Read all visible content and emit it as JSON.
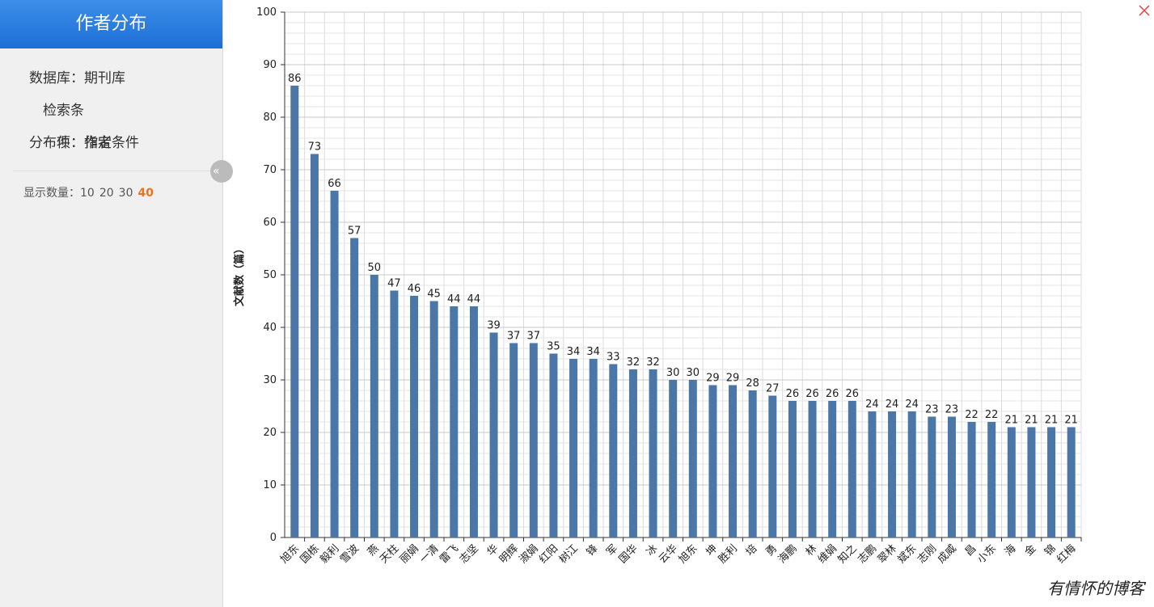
{
  "sidebar": {
    "title": "作者分布",
    "fields": [
      {
        "label": "数据库：",
        "value": "期刊库"
      },
      {
        "label": "检索条件：",
        "value": "指定条件"
      },
      {
        "label": "分布项：",
        "value": "作者"
      }
    ],
    "count_label": "显示数量：",
    "count_options": [
      10,
      20,
      30,
      40
    ],
    "count_selected": 40
  },
  "chart_data": {
    "type": "bar",
    "y_label": "文献数（篇）",
    "categories": [
      "旭东",
      "国栋",
      "毅利",
      "雪波",
      "燕",
      "天柱",
      "丽娟",
      "一清",
      "雷飞",
      "志坚",
      "华",
      "明辉",
      "淑娟",
      "红阳",
      "树江",
      "锋",
      "军",
      "国华",
      "冰",
      "云华",
      "旭东",
      "坤",
      "胜利",
      "培",
      "勇",
      "海鹏",
      "林",
      "维娟",
      "知之",
      "志鹏",
      "翠林",
      "斌东",
      "志刚",
      "成威",
      "昌",
      "小东",
      "海",
      "金",
      "锦",
      "红梅"
    ],
    "values": [
      86,
      73,
      66,
      57,
      50,
      47,
      46,
      45,
      44,
      44,
      39,
      37,
      37,
      35,
      34,
      34,
      33,
      32,
      32,
      30,
      30,
      29,
      29,
      28,
      27,
      26,
      26,
      26,
      26,
      24,
      24,
      24,
      23,
      23,
      22,
      22,
      21,
      21,
      21,
      21
    ],
    "color": "#4a76a8",
    "ylim": [
      0,
      100
    ],
    "yticks": [
      0,
      10,
      20,
      30,
      40,
      50,
      60,
      70,
      80,
      90,
      100
    ],
    "grid": true
  },
  "watermark": "有情怀的博客"
}
